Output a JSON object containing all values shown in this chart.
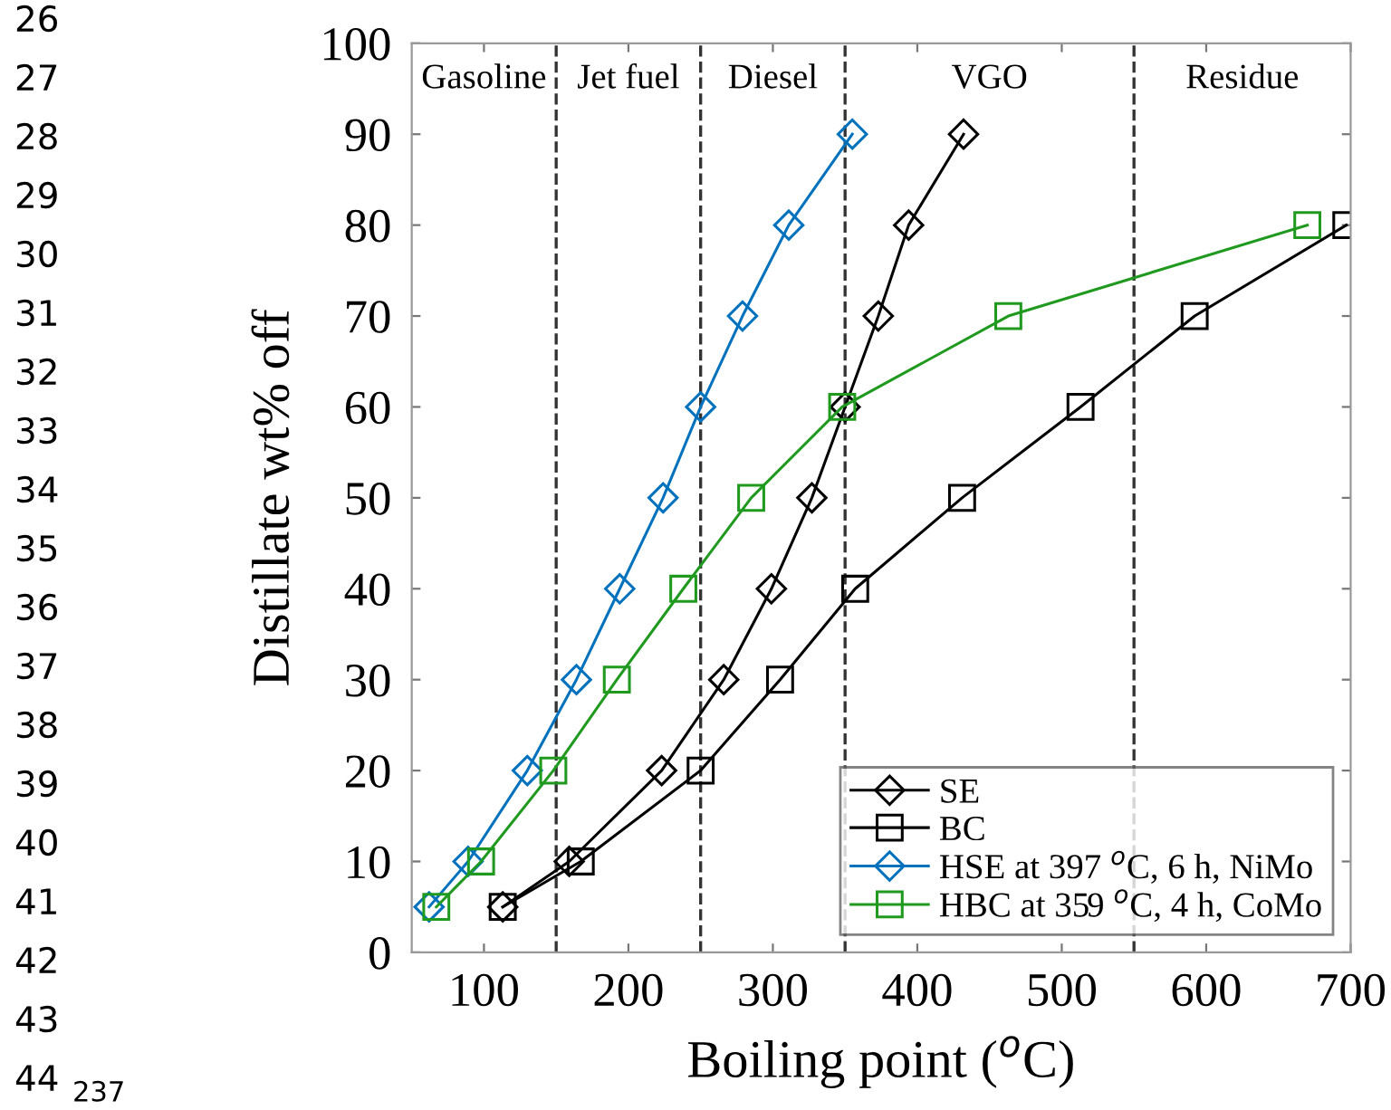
{
  "chart_data": {
    "type": "line",
    "xlabel": "Boiling point ($^{o}$C)",
    "ylabel": "Distillate wt% off",
    "xlim": [
      50,
      700
    ],
    "xticks": [
      100,
      200,
      300,
      400,
      500,
      600,
      700
    ],
    "ylim": [
      0,
      100
    ],
    "yticks": [
      0,
      10,
      20,
      30,
      40,
      50,
      60,
      70,
      80,
      90,
      100
    ],
    "grid": false,
    "legend": "bottom right",
    "series": [
      {
        "name": "SE",
        "color": "#000000",
        "marker": "diamond",
        "x": [
          113,
          159,
          223,
          266,
          299,
          327,
          350,
          373,
          394,
          432
        ],
        "values": [
          5,
          10,
          20,
          30,
          40,
          50,
          60,
          70,
          80,
          90
        ]
      },
      {
        "name": "BC",
        "color": "#000000",
        "marker": "square",
        "x": [
          113,
          167,
          250,
          305,
          357,
          431,
          513,
          592,
          697
        ],
        "values": [
          5,
          10,
          20,
          30,
          40,
          50,
          60,
          70,
          80
        ]
      },
      {
        "name": "HSE at 397 $^{o}$C, 6 h, NiMo",
        "color": "#0072bd",
        "marker": "diamond",
        "x": [
          62,
          89,
          130,
          164,
          194,
          224,
          250,
          279,
          311,
          355
        ],
        "values": [
          5,
          10,
          20,
          30,
          40,
          50,
          60,
          70,
          80,
          90
        ]
      },
      {
        "name": "HBC at 359 $^{o}$C, 4 h, CoMo",
        "color": "#1f9a1f",
        "marker": "square",
        "x": [
          67,
          98,
          148,
          192,
          238,
          285,
          348,
          463,
          670
        ],
        "values": [
          5,
          10,
          20,
          30,
          40,
          50,
          60,
          70,
          80
        ]
      }
    ],
    "ref_lines": [
      {
        "axis": "x",
        "value": 150,
        "color": "#333333",
        "line_style": "dashed"
      },
      {
        "axis": "x",
        "value": 250,
        "color": "#333333",
        "line_style": "dashed"
      },
      {
        "axis": "x",
        "value": 350,
        "color": "#333333",
        "line_style": "dashed"
      },
      {
        "axis": "x",
        "value": 550,
        "color": "#333333",
        "line_style": "dashed"
      }
    ],
    "annotations": [
      "Gasoline",
      "Jet fuel",
      "Diesel",
      "VGO",
      "Residue",
      "26",
      "27",
      "28",
      "29",
      "30",
      "31",
      "32",
      "33",
      "34",
      "35",
      "36",
      "37",
      "38",
      "39",
      "40",
      "41",
      "42",
      "43",
      "44",
      "237"
    ]
  }
}
